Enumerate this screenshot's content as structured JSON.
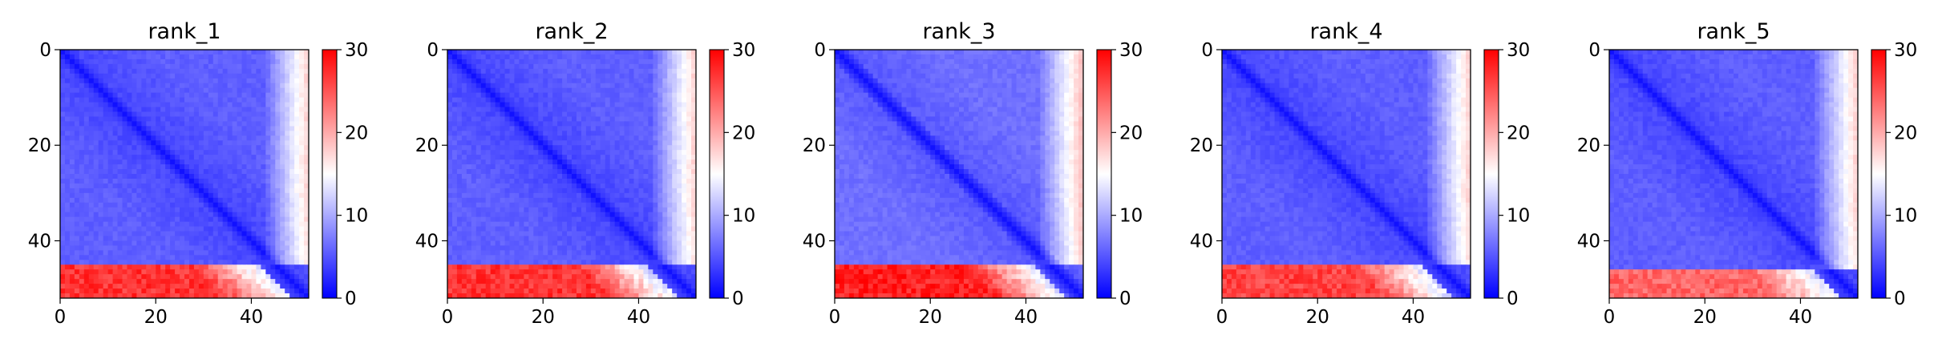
{
  "chart_data": [
    {
      "type": "heatmap",
      "title": "rank_1",
      "xticks": [
        0,
        20,
        40
      ],
      "yticks": [
        0,
        20,
        40
      ],
      "xlim": [
        0,
        52
      ],
      "ylim": [
        52,
        0
      ],
      "colorbar": {
        "ticks": [
          0,
          10,
          20,
          30
        ],
        "range": [
          0,
          30
        ]
      },
      "colormap": "bwr",
      "size": 52,
      "description_values": {
        "diagonal": 1,
        "bulk": 4,
        "offdiag_bottom_left_band": 27,
        "band_start_row": 45
      }
    },
    {
      "type": "heatmap",
      "title": "rank_2",
      "xticks": [
        0,
        20,
        40
      ],
      "yticks": [
        0,
        20,
        40
      ],
      "xlim": [
        0,
        52
      ],
      "ylim": [
        52,
        0
      ],
      "colorbar": {
        "ticks": [
          0,
          10,
          20,
          30
        ],
        "range": [
          0,
          30
        ]
      },
      "colormap": "bwr",
      "size": 52,
      "description_values": {
        "diagonal": 1,
        "bulk": 4,
        "offdiag_bottom_left_band": 27,
        "band_start_row": 45
      }
    },
    {
      "type": "heatmap",
      "title": "rank_3",
      "xticks": [
        0,
        20,
        40
      ],
      "yticks": [
        0,
        20,
        40
      ],
      "xlim": [
        0,
        52
      ],
      "ylim": [
        52,
        0
      ],
      "colorbar": {
        "ticks": [
          0,
          10,
          20,
          30
        ],
        "range": [
          0,
          30
        ]
      },
      "colormap": "bwr",
      "size": 52,
      "description_values": {
        "diagonal": 1,
        "bulk": 5,
        "offdiag_bottom_left_band": 28,
        "band_start_row": 45
      }
    },
    {
      "type": "heatmap",
      "title": "rank_4",
      "xticks": [
        0,
        20,
        40
      ],
      "yticks": [
        0,
        20,
        40
      ],
      "xlim": [
        0,
        52
      ],
      "ylim": [
        52,
        0
      ],
      "colorbar": {
        "ticks": [
          0,
          10,
          20,
          30
        ],
        "range": [
          0,
          30
        ]
      },
      "colormap": "bwr",
      "size": 52,
      "description_values": {
        "diagonal": 1,
        "bulk": 4,
        "offdiag_bottom_left_band": 26,
        "band_start_row": 45
      }
    },
    {
      "type": "heatmap",
      "title": "rank_5",
      "xticks": [
        0,
        20,
        40
      ],
      "yticks": [
        0,
        20,
        40
      ],
      "xlim": [
        0,
        52
      ],
      "ylim": [
        52,
        0
      ],
      "colorbar": {
        "ticks": [
          0,
          10,
          20,
          30
        ],
        "range": [
          0,
          30
        ]
      },
      "colormap": "bwr",
      "size": 52,
      "description_values": {
        "diagonal": 1,
        "bulk": 4,
        "offdiag_bottom_left_band": 24,
        "band_start_row": 46
      }
    }
  ]
}
